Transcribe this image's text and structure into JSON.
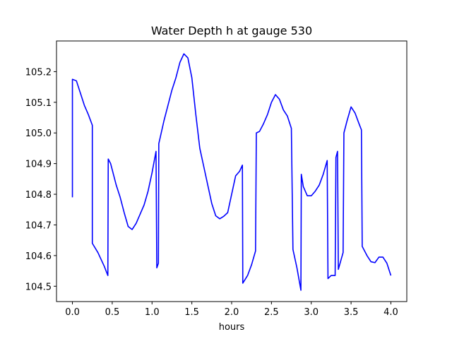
{
  "chart_data": {
    "type": "line",
    "title": "Water Depth h at gauge 530",
    "xlabel": "hours",
    "ylabel": "",
    "xlim": [
      -0.2,
      4.2
    ],
    "ylim": [
      104.45,
      105.3
    ],
    "xticks": [
      0.0,
      0.5,
      1.0,
      1.5,
      2.0,
      2.5,
      3.0,
      3.5,
      4.0
    ],
    "xtick_labels": [
      "0.0",
      "0.5",
      "1.0",
      "1.5",
      "2.0",
      "2.5",
      "3.0",
      "3.5",
      "4.0"
    ],
    "yticks": [
      104.5,
      104.6,
      104.7,
      104.8,
      104.9,
      105.0,
      105.1,
      105.2
    ],
    "ytick_labels": [
      "104.5",
      "104.6",
      "104.7",
      "104.8",
      "104.9",
      "105.0",
      "105.1",
      "105.2"
    ],
    "grid": false,
    "series": [
      {
        "color": "#0000ff",
        "points": [
          [
            0.0,
            104.79
          ],
          [
            0.0,
            105.175
          ],
          [
            0.05,
            105.17
          ],
          [
            0.1,
            105.13
          ],
          [
            0.15,
            105.09
          ],
          [
            0.2,
            105.06
          ],
          [
            0.25,
            105.025
          ],
          [
            0.25,
            104.64
          ],
          [
            0.32,
            104.61
          ],
          [
            0.4,
            104.565
          ],
          [
            0.445,
            104.535
          ],
          [
            0.45,
            104.915
          ],
          [
            0.48,
            104.9
          ],
          [
            0.55,
            104.83
          ],
          [
            0.6,
            104.79
          ],
          [
            0.65,
            104.74
          ],
          [
            0.7,
            104.695
          ],
          [
            0.75,
            104.685
          ],
          [
            0.8,
            104.705
          ],
          [
            0.85,
            104.735
          ],
          [
            0.9,
            104.765
          ],
          [
            0.95,
            104.81
          ],
          [
            1.0,
            104.87
          ],
          [
            1.05,
            104.94
          ],
          [
            1.06,
            104.56
          ],
          [
            1.08,
            104.575
          ],
          [
            1.085,
            104.965
          ],
          [
            1.15,
            105.04
          ],
          [
            1.2,
            105.09
          ],
          [
            1.25,
            105.14
          ],
          [
            1.3,
            105.18
          ],
          [
            1.35,
            105.23
          ],
          [
            1.4,
            105.258
          ],
          [
            1.45,
            105.245
          ],
          [
            1.5,
            105.18
          ],
          [
            1.55,
            105.06
          ],
          [
            1.6,
            104.95
          ],
          [
            1.65,
            104.89
          ],
          [
            1.7,
            104.83
          ],
          [
            1.75,
            104.77
          ],
          [
            1.8,
            104.73
          ],
          [
            1.85,
            104.72
          ],
          [
            1.9,
            104.728
          ],
          [
            1.95,
            104.74
          ],
          [
            2.0,
            104.8
          ],
          [
            2.05,
            104.86
          ],
          [
            2.1,
            104.875
          ],
          [
            2.135,
            104.895
          ],
          [
            2.14,
            104.51
          ],
          [
            2.2,
            104.535
          ],
          [
            2.25,
            104.57
          ],
          [
            2.3,
            104.615
          ],
          [
            2.31,
            105.0
          ],
          [
            2.35,
            105.005
          ],
          [
            2.4,
            105.03
          ],
          [
            2.45,
            105.06
          ],
          [
            2.5,
            105.1
          ],
          [
            2.55,
            105.125
          ],
          [
            2.6,
            105.11
          ],
          [
            2.65,
            105.075
          ],
          [
            2.7,
            105.055
          ],
          [
            2.75,
            105.015
          ],
          [
            2.77,
            104.62
          ],
          [
            2.82,
            104.56
          ],
          [
            2.87,
            104.487
          ],
          [
            2.875,
            104.865
          ],
          [
            2.9,
            104.825
          ],
          [
            2.95,
            104.795
          ],
          [
            3.0,
            104.795
          ],
          [
            3.05,
            104.81
          ],
          [
            3.1,
            104.83
          ],
          [
            3.15,
            104.865
          ],
          [
            3.2,
            104.91
          ],
          [
            3.21,
            104.525
          ],
          [
            3.25,
            104.535
          ],
          [
            3.3,
            104.535
          ],
          [
            3.31,
            104.92
          ],
          [
            3.33,
            104.94
          ],
          [
            3.34,
            104.555
          ],
          [
            3.4,
            104.61
          ],
          [
            3.41,
            105.0
          ],
          [
            3.45,
            105.04
          ],
          [
            3.5,
            105.085
          ],
          [
            3.55,
            105.065
          ],
          [
            3.6,
            105.03
          ],
          [
            3.63,
            105.01
          ],
          [
            3.64,
            104.63
          ],
          [
            3.7,
            104.6
          ],
          [
            3.75,
            104.58
          ],
          [
            3.8,
            104.577
          ],
          [
            3.85,
            104.595
          ],
          [
            3.9,
            104.595
          ],
          [
            3.95,
            104.575
          ],
          [
            4.0,
            104.535
          ]
        ]
      }
    ]
  }
}
